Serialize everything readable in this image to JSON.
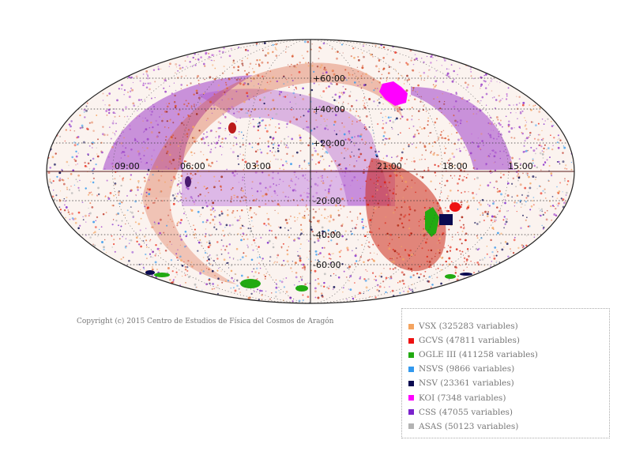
{
  "map": {
    "ra_labels": [
      "09:00",
      "06:00",
      "03:00",
      "21:00",
      "18:00",
      "15:00"
    ],
    "dec_labels": [
      "+60:00",
      "+40:00",
      "+20:00",
      "-20:00",
      "-40:00",
      "-60:00"
    ]
  },
  "copyright": "Copyright (c) 2015 Centro de Estudios de Física del Cosmos de Aragón",
  "legend": {
    "items": [
      {
        "label": "VSX (325283 variables)",
        "color": "#f4a460"
      },
      {
        "label": "GCVS (47811 variables)",
        "color": "#ee1111"
      },
      {
        "label": "OGLE III (411258 variables)",
        "color": "#22aa11"
      },
      {
        "label": "NSVS (9866 variables)",
        "color": "#3399ee"
      },
      {
        "label": "NSV (23361 variables)",
        "color": "#0a0a50"
      },
      {
        "label": "KOI (7348 variables)",
        "color": "#ff00ff"
      },
      {
        "label": "CSS (47055 variables)",
        "color": "#7a22cc"
      },
      {
        "label": "ASAS (50123 variables)",
        "color": "#b3b3b3"
      }
    ]
  }
}
